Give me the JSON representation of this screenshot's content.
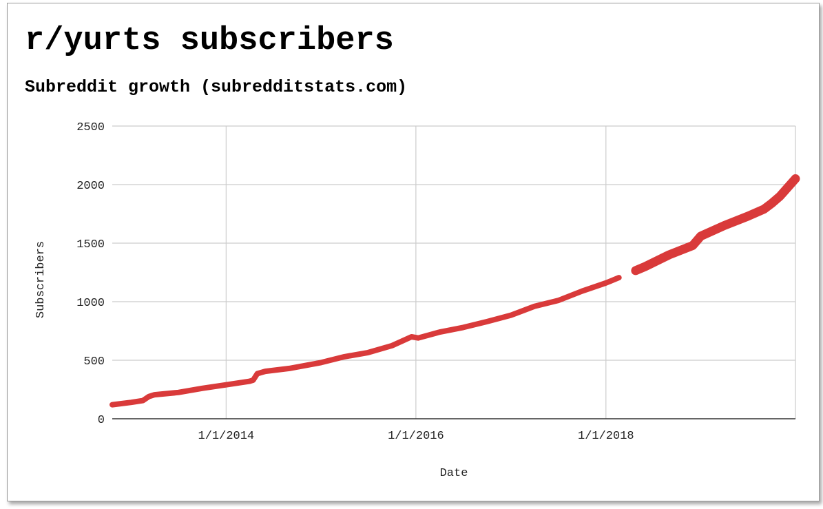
{
  "chart_data": {
    "type": "line",
    "title": "r/yurts subscribers",
    "subtitle": "Subreddit growth (subredditstats.com)",
    "xlabel": "Date",
    "ylabel": "Subscribers",
    "xlim": [
      "2012-10-20",
      "2019-12-31"
    ],
    "ylim": [
      0,
      2500
    ],
    "y_ticks": [
      "0",
      "500",
      "1000",
      "1500",
      "2000",
      "2500"
    ],
    "x_ticks": [
      {
        "date": "2014-01-01",
        "label": "1/1/2014"
      },
      {
        "date": "2016-01-01",
        "label": "1/1/2016"
      },
      {
        "date": "2018-01-01",
        "label": "1/1/2018"
      }
    ],
    "grid": true,
    "legend": "none",
    "line_color": "#d93a3a",
    "series": [
      {
        "values": [
          [
            "2012-10-20",
            120
          ],
          [
            "2013-01-01",
            140
          ],
          [
            "2013-02-15",
            155
          ],
          [
            "2013-03-10",
            190
          ],
          [
            "2013-04-01",
            205
          ],
          [
            "2013-07-01",
            225
          ],
          [
            "2013-10-01",
            260
          ],
          [
            "2014-01-01",
            290
          ],
          [
            "2014-04-01",
            320
          ],
          [
            "2014-04-15",
            330
          ],
          [
            "2014-05-01",
            385
          ],
          [
            "2014-06-01",
            405
          ],
          [
            "2014-09-01",
            430
          ],
          [
            "2015-01-01",
            480
          ],
          [
            "2015-04-01",
            530
          ],
          [
            "2015-07-01",
            565
          ],
          [
            "2015-10-01",
            625
          ],
          [
            "2015-12-15",
            700
          ],
          [
            "2016-01-10",
            690
          ],
          [
            "2016-04-01",
            740
          ],
          [
            "2016-07-01",
            780
          ],
          [
            "2016-10-01",
            830
          ],
          [
            "2017-01-01",
            885
          ],
          [
            "2017-04-01",
            960
          ],
          [
            "2017-07-01",
            1010
          ],
          [
            "2017-10-01",
            1090
          ],
          [
            "2018-01-01",
            1160
          ],
          [
            "2018-02-20",
            1205
          ]
        ]
      },
      {
        "values": [
          [
            "2018-04-25",
            1265
          ],
          [
            "2018-06-01",
            1300
          ],
          [
            "2018-09-01",
            1400
          ],
          [
            "2018-12-01",
            1480
          ],
          [
            "2019-01-01",
            1560
          ],
          [
            "2019-04-01",
            1650
          ],
          [
            "2019-07-01",
            1730
          ],
          [
            "2019-09-01",
            1790
          ],
          [
            "2019-10-01",
            1840
          ],
          [
            "2019-11-01",
            1900
          ],
          [
            "2019-12-31",
            2050
          ]
        ]
      }
    ]
  }
}
